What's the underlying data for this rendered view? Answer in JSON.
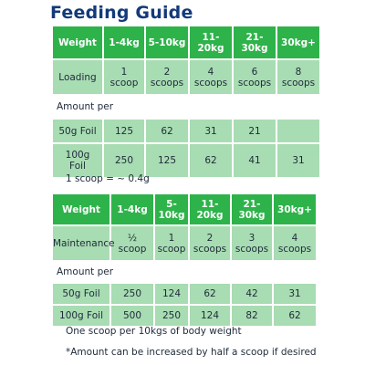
{
  "title": "Feeding Guide",
  "colors": {
    "header_green": "#2db34a",
    "row_green": "#a8dcb2",
    "title_blue": "#133a7a"
  },
  "loading_table": {
    "headers": [
      "Weight",
      "1-4kg",
      "5-10kg",
      "11-\n20kg",
      "21-\n30kg",
      "30kg+"
    ],
    "loading_row": [
      "Loading",
      "1\nscoop",
      "2\nscoops",
      "4\nscoops",
      "6\nscoops",
      "8\nscoops"
    ],
    "amount_per_label": "Amount per",
    "foil_50g": [
      "50g Foil",
      "125",
      "62",
      "31",
      "21",
      ""
    ],
    "foil_100g": [
      "100g\nFoil",
      "250",
      "125",
      "62",
      "41",
      "31"
    ]
  },
  "scoop_note": "1 scoop = ~ 0.4g",
  "maintenance_table": {
    "headers": [
      "Weight",
      "1-4kg",
      "5-\n10kg",
      "11-\n20kg",
      "21-\n30kg",
      "30kg+"
    ],
    "maintenance_row": [
      "Maintenance",
      "½\nscoop",
      "1\nscoop",
      "2\nscoops",
      "3\nscoops",
      "4\nscoops"
    ],
    "amount_per_label": "Amount per",
    "foil_50g": [
      "50g Foil",
      "250",
      "124",
      "62",
      "42",
      "31"
    ],
    "foil_100g": [
      "100g Foil",
      "500",
      "250",
      "124",
      "82",
      "62"
    ]
  },
  "body_weight_note": "One scoop per 10kgs of body weight",
  "footnote": "*Amount can be increased by half a scoop if desired"
}
